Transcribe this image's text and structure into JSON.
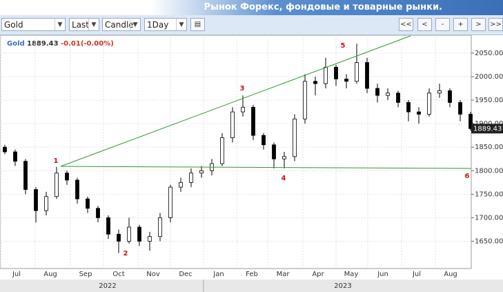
{
  "header": {
    "title": "Рынок Форекс, фондовые и товарные рынки."
  },
  "toolbar": {
    "symbol": "Gold",
    "price_type": "Last",
    "chart_type": "Candle",
    "interval": "1Day",
    "buttons": [
      "<<",
      "<",
      "-",
      "+",
      ">",
      ">>"
    ]
  },
  "chart_data": {
    "type": "candlestick",
    "symbol": "Gold",
    "last": 1889.43,
    "last_label": "1889.43",
    "change": "-0.01(-0.00%)",
    "months": [
      "Jul",
      "Aug",
      "Sep",
      "Oct",
      "Nov",
      "Dec",
      "Jan",
      "Feb",
      "Mar",
      "Apr",
      "May",
      "Jun",
      "Jul",
      "Aug"
    ],
    "years": [
      "2022",
      "2023"
    ],
    "annotations": [
      "1",
      "2",
      "3",
      "4",
      "5",
      "6"
    ],
    "ylim": [
      1592,
      2088
    ],
    "yticks": [
      {
        "value": 1650,
        "label": "1650.00"
      },
      {
        "value": 1700,
        "label": "1700.00"
      },
      {
        "value": 1750,
        "label": "1750.00"
      },
      {
        "value": 1800,
        "label": "1800.00"
      },
      {
        "value": 1850,
        "label": "1850.00"
      },
      {
        "value": 1900,
        "label": "1900.00"
      },
      {
        "value": 1950,
        "label": "1950.00"
      },
      {
        "value": 2000,
        "label": "2000.00"
      },
      {
        "value": 2050,
        "label": "2050.00"
      }
    ],
    "grid": true,
    "color": "#000000",
    "open": [
      1850,
      1840,
      1820,
      1760,
      1715,
      1745,
      1795,
      1780,
      1740,
      1720,
      1700,
      1665,
      1650,
      1680,
      1650,
      1660,
      1700,
      1765,
      1775,
      1795,
      1800,
      1815,
      1870,
      1925,
      1935,
      1875,
      1855,
      1825,
      1830,
      1910,
      1990,
      1985,
      2020,
      1995,
      1990,
      2030,
      1975,
      1960,
      1965,
      1945,
      1925,
      1920,
      1965,
      1970,
      1945,
      1920
    ],
    "high": [
      1855,
      1845,
      1825,
      1765,
      1755,
      1808,
      1800,
      1785,
      1745,
      1725,
      1705,
      1675,
      1700,
      1685,
      1670,
      1710,
      1770,
      1785,
      1805,
      1810,
      1825,
      1880,
      1935,
      1960,
      1940,
      1880,
      1860,
      1840,
      1920,
      2005,
      2000,
      2040,
      2025,
      2005,
      2070,
      2040,
      1985,
      1975,
      1970,
      1950,
      1935,
      1975,
      1985,
      1975,
      1950,
      1925
    ],
    "low": [
      1835,
      1810,
      1750,
      1690,
      1705,
      1740,
      1770,
      1730,
      1710,
      1690,
      1655,
      1625,
      1645,
      1640,
      1630,
      1650,
      1690,
      1755,
      1765,
      1785,
      1790,
      1810,
      1860,
      1915,
      1865,
      1845,
      1805,
      1805,
      1820,
      1900,
      1960,
      1975,
      1980,
      1975,
      1985,
      1965,
      1945,
      1950,
      1935,
      1905,
      1900,
      1915,
      1955,
      1935,
      1905,
      1885
    ],
    "close": [
      1840,
      1820,
      1760,
      1715,
      1745,
      1795,
      1780,
      1740,
      1720,
      1700,
      1665,
      1650,
      1680,
      1650,
      1660,
      1700,
      1765,
      1775,
      1795,
      1800,
      1815,
      1870,
      1925,
      1935,
      1875,
      1855,
      1825,
      1830,
      1910,
      1990,
      1985,
      2020,
      1995,
      1990,
      2030,
      1975,
      1960,
      1965,
      1945,
      1925,
      1920,
      1965,
      1970,
      1945,
      1920,
      1889.43
    ]
  }
}
